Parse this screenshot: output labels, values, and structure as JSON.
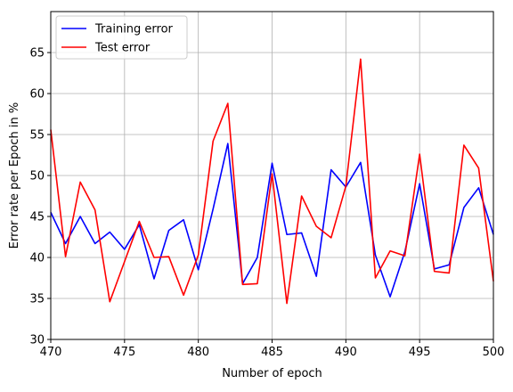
{
  "chart_data": {
    "type": "line",
    "title": "",
    "xlabel": "Number of epoch",
    "ylabel": "Error rate per Epoch in %",
    "xlim": [
      470,
      500
    ],
    "ylim": [
      30,
      70
    ],
    "xticks": [
      470,
      475,
      480,
      485,
      490,
      495,
      500
    ],
    "yticks": [
      30,
      35,
      40,
      45,
      50,
      55,
      60,
      65
    ],
    "grid": true,
    "legend_position": "top-left",
    "x": [
      470,
      471,
      472,
      473,
      474,
      475,
      476,
      477,
      478,
      479,
      480,
      481,
      482,
      483,
      484,
      485,
      486,
      487,
      488,
      489,
      490,
      491,
      492,
      493,
      494,
      495,
      496,
      497,
      498,
      499,
      500
    ],
    "series": [
      {
        "name": "Training error",
        "color": "#0000ff",
        "values": [
          45.5,
          41.7,
          45.0,
          41.7,
          43.1,
          41.0,
          44.0,
          37.4,
          43.3,
          44.6,
          38.5,
          45.9,
          53.9,
          36.8,
          40.0,
          51.5,
          42.8,
          43.0,
          37.7,
          50.7,
          48.6,
          51.6,
          40.3,
          35.2,
          40.7,
          49.0,
          38.6,
          39.1,
          46.1,
          48.5,
          42.8
        ]
      },
      {
        "name": "Test error",
        "color": "#ff0000",
        "values": [
          55.6,
          40.1,
          49.2,
          45.8,
          34.6,
          39.5,
          44.4,
          40.0,
          40.1,
          35.4,
          40.3,
          54.2,
          58.8,
          36.7,
          36.8,
          50.2,
          34.4,
          47.5,
          43.8,
          42.4,
          48.7,
          64.2,
          37.5,
          40.8,
          40.2,
          52.6,
          38.3,
          38.1,
          53.7,
          50.9,
          37.1
        ]
      }
    ]
  }
}
